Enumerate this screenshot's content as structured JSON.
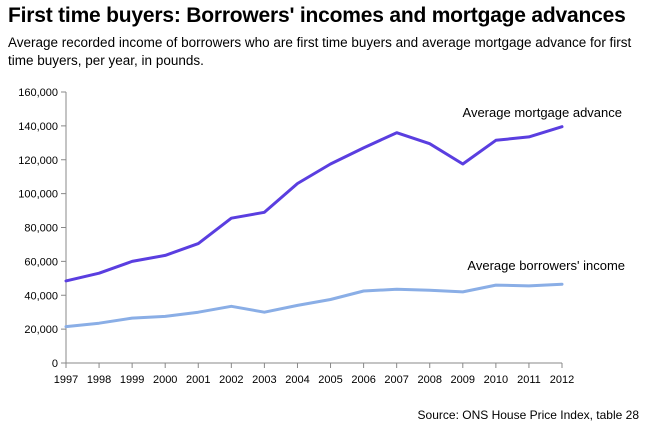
{
  "header": {
    "title": "First time buyers: Borrowers' incomes and mortgage advances",
    "subtitle": "Average recorded  income of borrowers  who are first time buyers and average mortgage advance for first time buyers, per year, in pounds."
  },
  "footer": {
    "source": "Source:  ONS House Price Index, table 28"
  },
  "colors": {
    "advance": "#5a3ee0",
    "income": "#8aaee6",
    "axis": "#888888"
  },
  "chart_data": {
    "type": "line",
    "title": "First time buyers: Borrowers' incomes and mortgage advances",
    "xlabel": "",
    "ylabel": "",
    "ylim": [
      0,
      160000
    ],
    "yticks": [
      "0",
      "20,000",
      "40,000",
      "60,000",
      "80,000",
      "100,000",
      "120,000",
      "140,000",
      "160,000"
    ],
    "x": [
      "1997",
      "1998",
      "1999",
      "2000",
      "2001",
      "2002",
      "2003",
      "2004",
      "2005",
      "2006",
      "2007",
      "2008",
      "2009",
      "2010",
      "2011",
      "2012"
    ],
    "grid": false,
    "legend": "direct labels",
    "series": [
      {
        "name": "Average mortgage advance",
        "values": [
          48500,
          53000,
          60000,
          63500,
          70500,
          85500,
          89000,
          106000,
          117500,
          127000,
          136000,
          129500,
          117500,
          131500,
          133500,
          139500
        ]
      },
      {
        "name": "Average borrowers' income",
        "values": [
          21500,
          23500,
          26500,
          27500,
          30000,
          33500,
          30000,
          34000,
          37500,
          42500,
          43500,
          43000,
          42000,
          46000,
          45500,
          46500
        ]
      }
    ]
  }
}
